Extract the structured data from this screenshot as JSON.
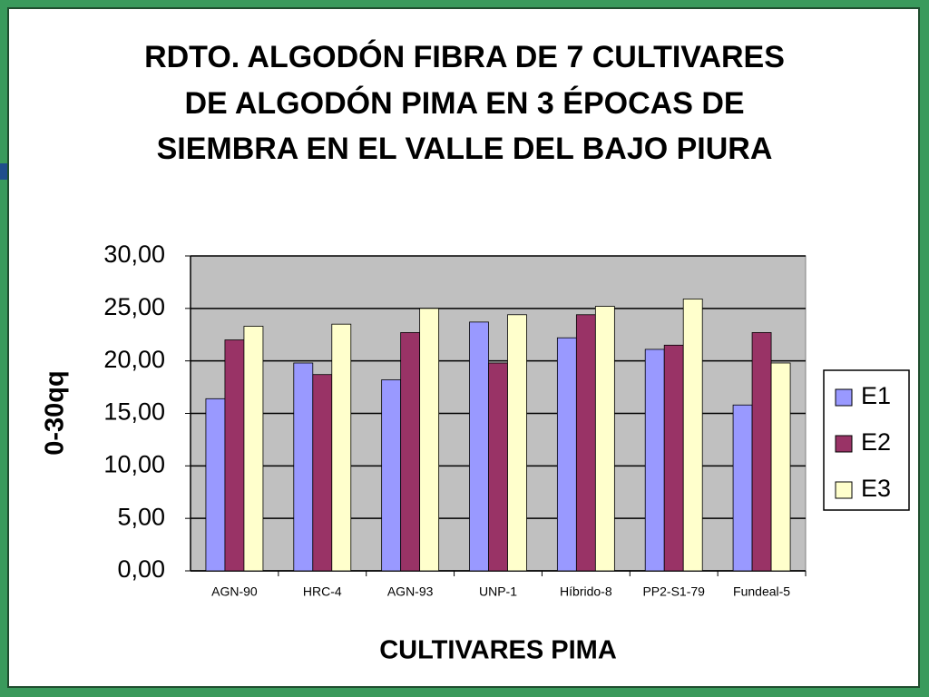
{
  "chart_data": {
    "type": "bar",
    "title": "RDTO. ALGODÓN FIBRA DE 7 CULTIVARES DE ALGODÓN PIMA EN 3 ÉPOCAS DE SIEMBRA EN EL VALLE DEL BAJO PIURA",
    "x_label": "CULTIVARES  PIMA",
    "y_label": "0-30qq",
    "categories": [
      "AGN-90",
      "HRC-4",
      "AGN-93",
      "UNP-1",
      "Híbrido-8",
      "PP2-S1-79",
      "Fundeal-5"
    ],
    "series": [
      {
        "name": "E1",
        "color": "#9999ff",
        "values": [
          16.4,
          19.8,
          18.2,
          23.7,
          22.2,
          21.1,
          15.8
        ]
      },
      {
        "name": "E2",
        "color": "#993366",
        "values": [
          22.0,
          18.7,
          22.7,
          19.8,
          24.4,
          21.5,
          22.7
        ]
      },
      {
        "name": "E3",
        "color": "#ffffcc",
        "values": [
          23.3,
          23.5,
          25.0,
          24.4,
          25.2,
          25.9,
          19.8
        ]
      }
    ],
    "ylim": [
      0,
      30
    ],
    "yticks": [
      {
        "value": 0,
        "label": "0,00"
      },
      {
        "value": 5,
        "label": "5,00"
      },
      {
        "value": 10,
        "label": "10,00"
      },
      {
        "value": 15,
        "label": "15,00"
      },
      {
        "value": 20,
        "label": "20,00"
      },
      {
        "value": 25,
        "label": "25,00"
      },
      {
        "value": 30,
        "label": "30,00"
      }
    ],
    "grid": true,
    "legend": "right"
  }
}
